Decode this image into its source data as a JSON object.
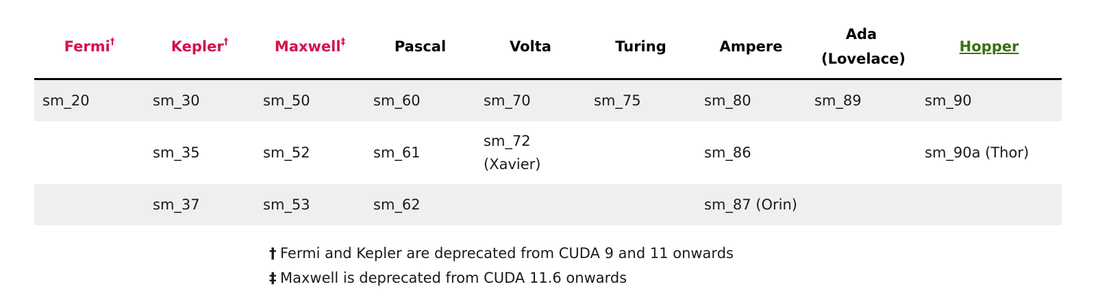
{
  "table": {
    "headers": [
      {
        "label": "Fermi",
        "mark": "†",
        "style": "deprecated"
      },
      {
        "label": "Kepler",
        "mark": "†",
        "style": "deprecated"
      },
      {
        "label": "Maxwell",
        "mark": "‡",
        "style": "deprecated"
      },
      {
        "label": "Pascal",
        "mark": "",
        "style": "plain"
      },
      {
        "label": "Volta",
        "mark": "",
        "style": "plain"
      },
      {
        "label": "Turing",
        "mark": "",
        "style": "plain"
      },
      {
        "label": "Ampere",
        "mark": "",
        "style": "plain"
      },
      {
        "label": "Ada (Lovelace)",
        "mark": "",
        "style": "plain"
      },
      {
        "label": "Hopper",
        "mark": "",
        "style": "link"
      }
    ],
    "rows": [
      [
        "sm_20",
        "sm_30",
        "sm_50",
        "sm_60",
        "sm_70",
        "sm_75",
        "sm_80",
        "sm_89",
        "sm_90"
      ],
      [
        "",
        "sm_35",
        "sm_52",
        "sm_61",
        "sm_72 (Xavier)",
        "",
        "sm_86",
        "",
        "sm_90a (Thor)"
      ],
      [
        "",
        "sm_37",
        "sm_53",
        "sm_62",
        "",
        "",
        "sm_87 (Orin)",
        "",
        ""
      ]
    ]
  },
  "footnotes": [
    {
      "mark": "†",
      "text": "Fermi and Kepler are deprecated from CUDA 9 and 11 onwards"
    },
    {
      "mark": "‡",
      "text": "Maxwell is deprecated from CUDA 11.6 onwards"
    }
  ],
  "colors": {
    "deprecated": "#d4124a",
    "link": "#3c6e14",
    "stripe": "#efefef",
    "header_rule": "#000000"
  }
}
